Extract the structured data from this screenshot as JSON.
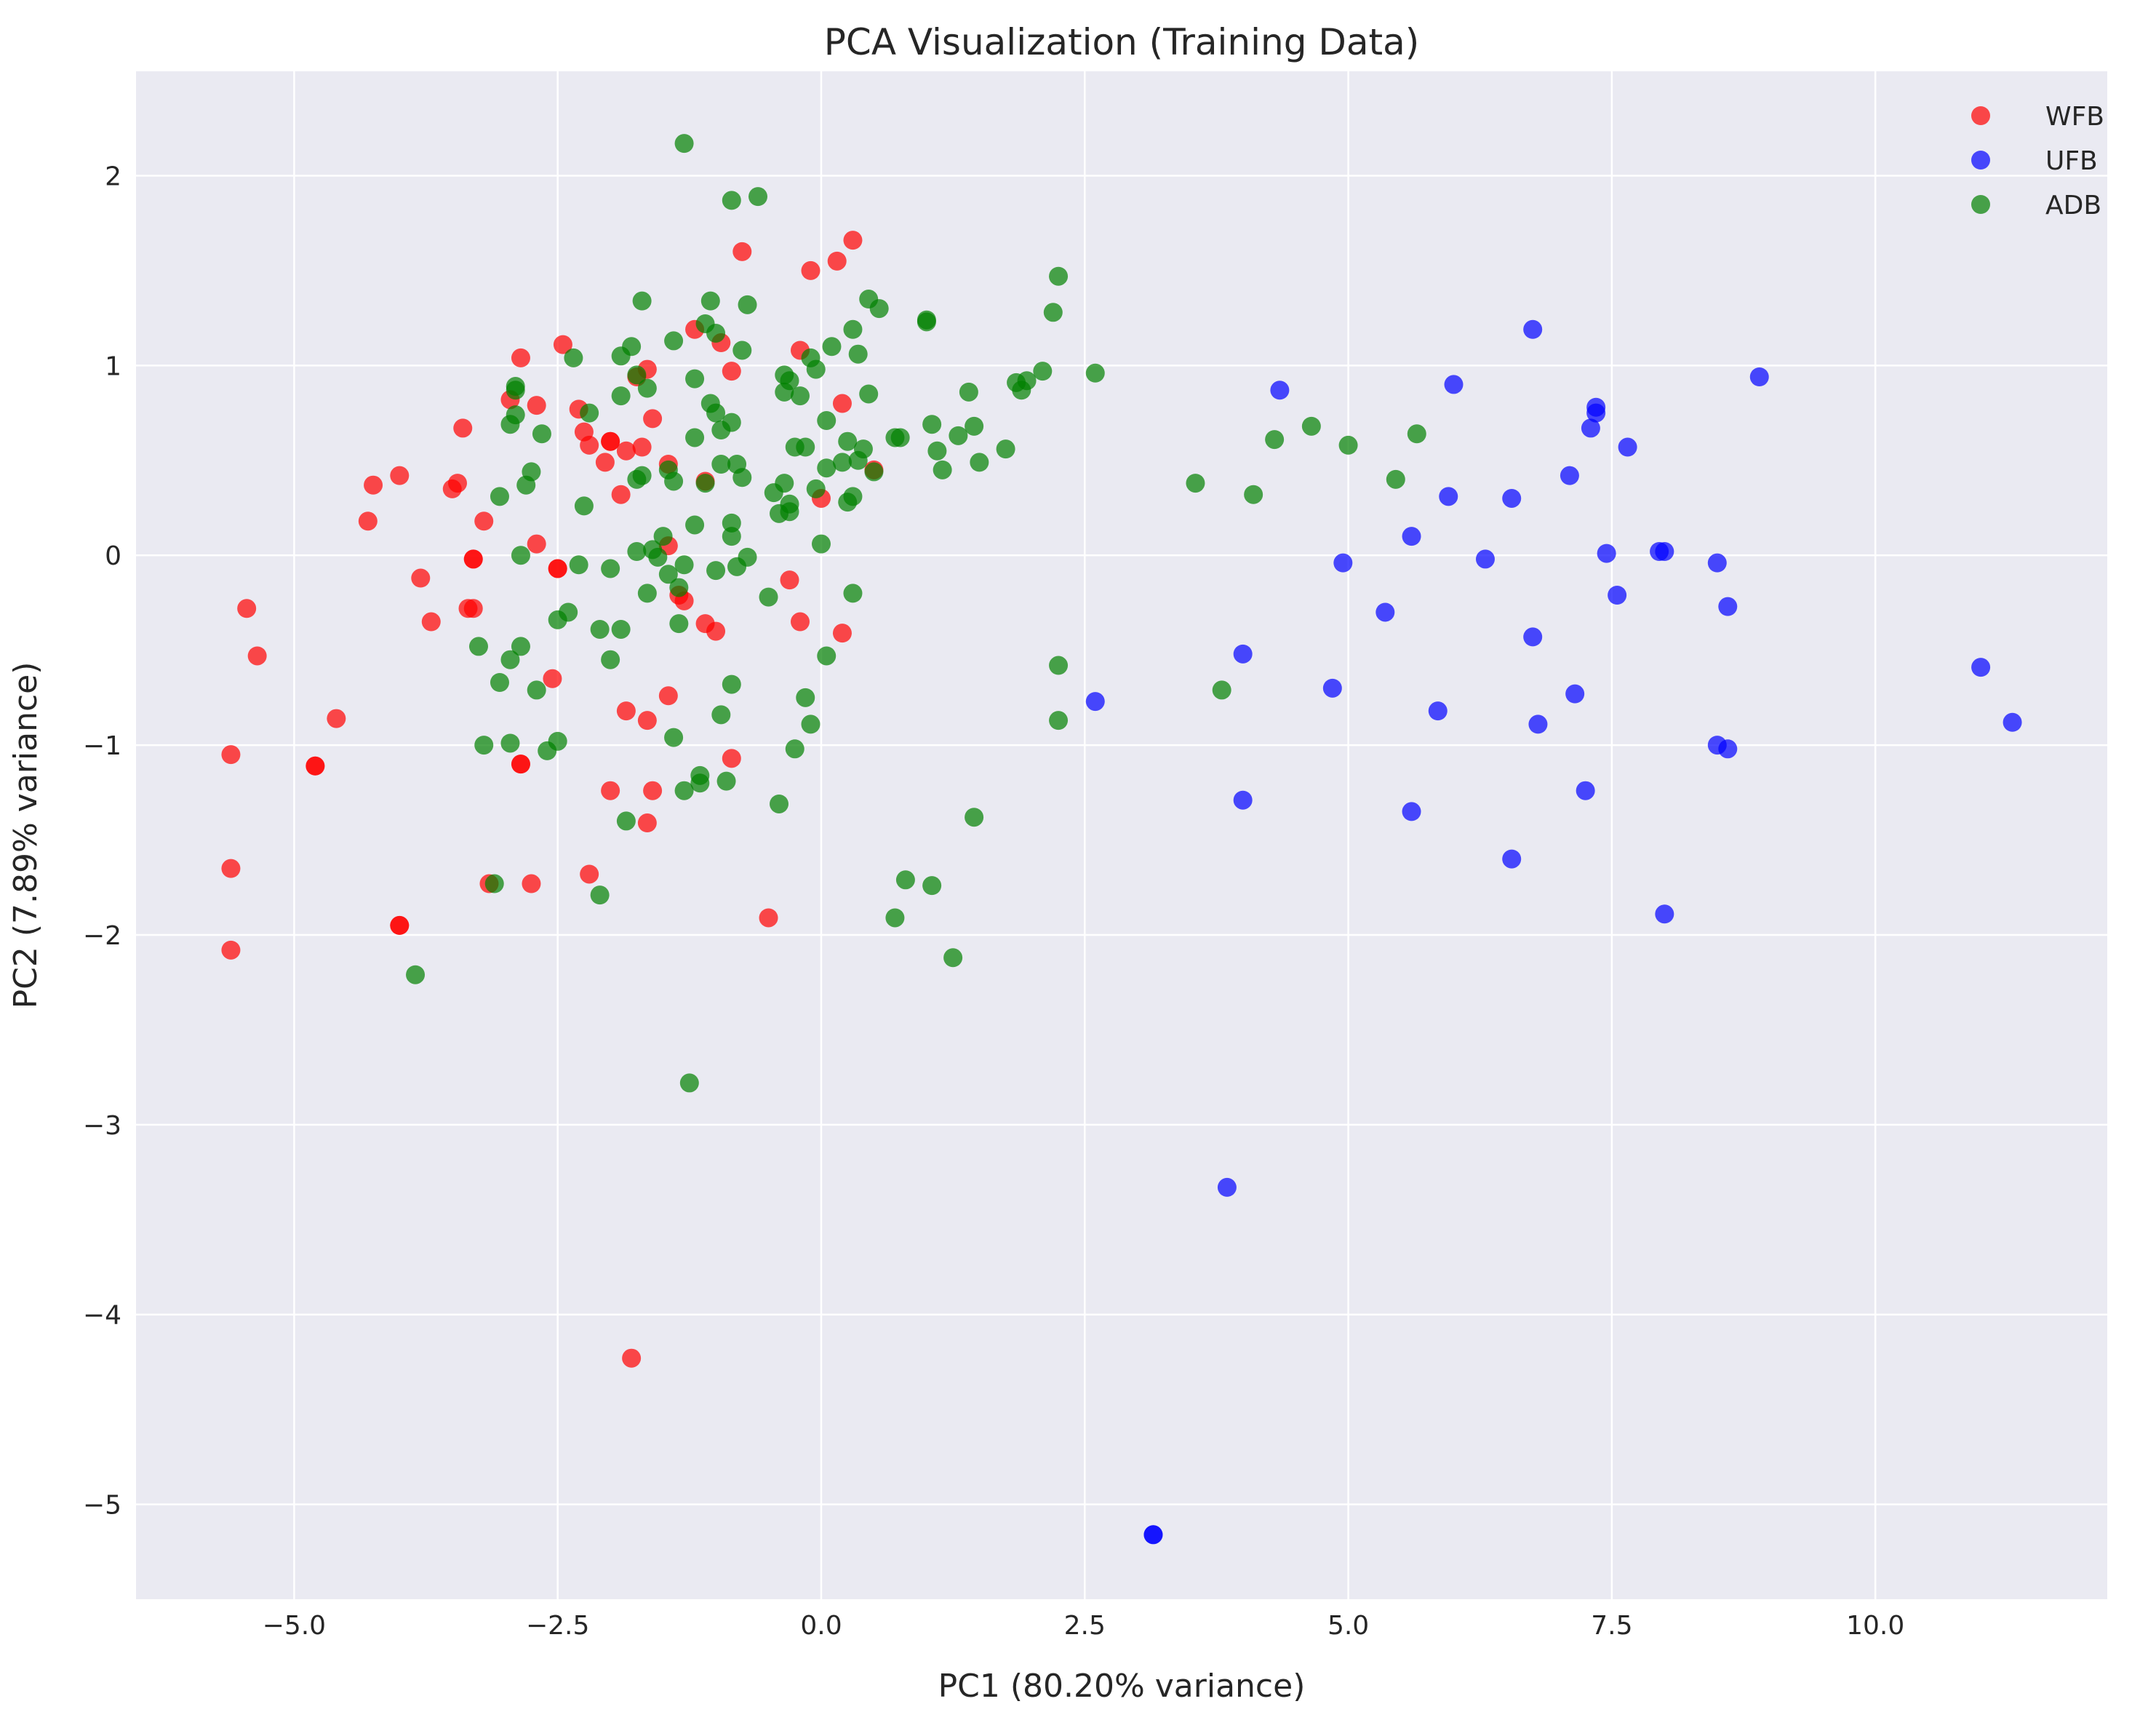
{
  "chart_data": {
    "type": "scatter",
    "title": "PCA Visualization (Training Data)",
    "xlabel": "PC1 (80.20% variance)",
    "ylabel": "PC2 (7.89% variance)",
    "xlim": [
      -6.5,
      12.2
    ],
    "ylim": [
      -5.5,
      2.55
    ],
    "xticks": [
      -5.0,
      -2.5,
      0.0,
      2.5,
      5.0,
      7.5,
      10.0
    ],
    "xtick_labels": [
      "−5.0",
      "−2.5",
      "0.0",
      "2.5",
      "5.0",
      "7.5",
      "10.0"
    ],
    "yticks": [
      -5,
      -4,
      -3,
      -2,
      -1,
      0,
      1,
      2
    ],
    "ytick_labels": [
      "−5",
      "−4",
      "−3",
      "−2",
      "−1",
      "0",
      "1",
      "2"
    ],
    "grid": true,
    "legend_position": "top-right",
    "colors": {
      "background": "#eaeaf2",
      "grid": "#ffffff"
    },
    "series": [
      {
        "name": "WFB",
        "color": "#ff0000",
        "points": [
          [
            -5.6,
            -1.05
          ],
          [
            -5.6,
            -1.65
          ],
          [
            -5.6,
            -2.08
          ],
          [
            -5.45,
            -0.28
          ],
          [
            -5.35,
            -0.53
          ],
          [
            -4.8,
            -1.11
          ],
          [
            -4.8,
            -1.11
          ],
          [
            -4.6,
            -0.86
          ],
          [
            -4.3,
            0.18
          ],
          [
            -4.25,
            0.37
          ],
          [
            -4.0,
            0.42
          ],
          [
            -4.0,
            -1.95
          ],
          [
            -4.0,
            -1.95
          ],
          [
            -3.8,
            -0.12
          ],
          [
            -3.7,
            -0.35
          ],
          [
            -3.5,
            0.35
          ],
          [
            -3.45,
            0.38
          ],
          [
            -3.4,
            0.67
          ],
          [
            -3.35,
            -0.28
          ],
          [
            -3.3,
            -0.02
          ],
          [
            -3.3,
            -0.02
          ],
          [
            -3.3,
            -0.28
          ],
          [
            -3.2,
            0.18
          ],
          [
            -3.15,
            -1.73
          ],
          [
            -2.95,
            0.82
          ],
          [
            -2.85,
            1.04
          ],
          [
            -2.85,
            -1.1
          ],
          [
            -2.85,
            -1.1
          ],
          [
            -2.75,
            -1.73
          ],
          [
            -2.7,
            0.79
          ],
          [
            -2.7,
            0.06
          ],
          [
            -2.55,
            -0.65
          ],
          [
            -2.5,
            -0.07
          ],
          [
            -2.5,
            -0.07
          ],
          [
            -2.45,
            1.11
          ],
          [
            -2.3,
            0.77
          ],
          [
            -2.25,
            0.65
          ],
          [
            -2.2,
            0.58
          ],
          [
            -2.2,
            -1.68
          ],
          [
            -2.05,
            0.49
          ],
          [
            -2.0,
            0.6
          ],
          [
            -2.0,
            0.6
          ],
          [
            -2.0,
            -1.24
          ],
          [
            -1.9,
            0.32
          ],
          [
            -1.85,
            0.55
          ],
          [
            -1.85,
            -0.82
          ],
          [
            -1.8,
            -4.23
          ],
          [
            -1.75,
            0.94
          ],
          [
            -1.7,
            0.57
          ],
          [
            -1.65,
            0.98
          ],
          [
            -1.65,
            -0.87
          ],
          [
            -1.65,
            -1.41
          ],
          [
            -1.6,
            0.72
          ],
          [
            -1.6,
            -1.24
          ],
          [
            -1.45,
            0.48
          ],
          [
            -1.45,
            0.05
          ],
          [
            -1.45,
            -0.74
          ],
          [
            -1.35,
            -0.21
          ],
          [
            -1.3,
            -0.24
          ],
          [
            -1.2,
            1.19
          ],
          [
            -1.1,
            0.39
          ],
          [
            -1.1,
            -0.36
          ],
          [
            -1.0,
            -0.4
          ],
          [
            -0.95,
            1.12
          ],
          [
            -0.85,
            0.97
          ],
          [
            -0.85,
            -1.07
          ],
          [
            -0.75,
            1.6
          ],
          [
            -0.5,
            -1.91
          ],
          [
            -0.3,
            -0.13
          ],
          [
            -0.2,
            1.08
          ],
          [
            -0.2,
            -0.35
          ],
          [
            -0.1,
            1.5
          ],
          [
            0.0,
            0.3
          ],
          [
            0.15,
            1.55
          ],
          [
            0.2,
            0.8
          ],
          [
            0.2,
            -0.41
          ],
          [
            0.3,
            1.66
          ],
          [
            0.5,
            0.45
          ]
        ]
      },
      {
        "name": "UFB",
        "color": "#0000ff",
        "points": [
          [
            2.6,
            -0.77
          ],
          [
            3.15,
            -5.16
          ],
          [
            3.15,
            -5.16
          ],
          [
            3.85,
            -3.33
          ],
          [
            4.0,
            -0.52
          ],
          [
            4.0,
            -1.29
          ],
          [
            4.35,
            0.87
          ],
          [
            4.85,
            -0.7
          ],
          [
            4.95,
            -0.04
          ],
          [
            5.35,
            -0.3
          ],
          [
            5.6,
            0.1
          ],
          [
            5.6,
            -1.35
          ],
          [
            5.85,
            -0.82
          ],
          [
            5.95,
            0.31
          ],
          [
            6.0,
            0.9
          ],
          [
            6.3,
            -0.02
          ],
          [
            6.55,
            0.3
          ],
          [
            6.55,
            -1.6
          ],
          [
            6.75,
            1.19
          ],
          [
            6.75,
            -0.43
          ],
          [
            6.8,
            -0.89
          ],
          [
            7.1,
            0.42
          ],
          [
            7.15,
            -0.73
          ],
          [
            7.25,
            -1.24
          ],
          [
            7.3,
            0.67
          ],
          [
            7.35,
            0.78
          ],
          [
            7.35,
            0.75
          ],
          [
            7.45,
            0.01
          ],
          [
            7.55,
            -0.21
          ],
          [
            7.65,
            0.57
          ],
          [
            7.95,
            0.02
          ],
          [
            8.0,
            0.02
          ],
          [
            8.0,
            -1.89
          ],
          [
            8.5,
            -0.04
          ],
          [
            8.5,
            -1.0
          ],
          [
            8.6,
            -1.02
          ],
          [
            8.6,
            -0.27
          ],
          [
            8.9,
            0.94
          ],
          [
            11.0,
            -0.59
          ],
          [
            11.3,
            -0.88
          ]
        ]
      },
      {
        "name": "ADB",
        "color": "#008000",
        "points": [
          [
            -3.85,
            -2.21
          ],
          [
            -3.25,
            -0.48
          ],
          [
            -3.2,
            -1.0
          ],
          [
            -3.1,
            -1.73
          ],
          [
            -3.05,
            0.31
          ],
          [
            -3.05,
            -0.67
          ],
          [
            -2.95,
            0.69
          ],
          [
            -2.95,
            -0.55
          ],
          [
            -2.95,
            -0.99
          ],
          [
            -2.9,
            0.87
          ],
          [
            -2.9,
            0.89
          ],
          [
            -2.9,
            0.74
          ],
          [
            -2.85,
            0.0
          ],
          [
            -2.85,
            -0.48
          ],
          [
            -2.8,
            0.37
          ],
          [
            -2.75,
            0.44
          ],
          [
            -2.7,
            -0.71
          ],
          [
            -2.65,
            0.64
          ],
          [
            -2.6,
            -1.03
          ],
          [
            -2.5,
            -0.98
          ],
          [
            -2.5,
            -0.34
          ],
          [
            -2.4,
            -0.3
          ],
          [
            -2.35,
            1.04
          ],
          [
            -2.3,
            -0.05
          ],
          [
            -2.25,
            0.26
          ],
          [
            -2.2,
            0.75
          ],
          [
            -2.1,
            -0.39
          ],
          [
            -2.1,
            -1.79
          ],
          [
            -2.0,
            -0.07
          ],
          [
            -2.0,
            -0.55
          ],
          [
            -1.9,
            1.05
          ],
          [
            -1.9,
            0.84
          ],
          [
            -1.9,
            -0.39
          ],
          [
            -1.85,
            -1.4
          ],
          [
            -1.8,
            1.1
          ],
          [
            -1.75,
            0.95
          ],
          [
            -1.75,
            0.4
          ],
          [
            -1.75,
            0.02
          ],
          [
            -1.7,
            1.34
          ],
          [
            -1.7,
            0.42
          ],
          [
            -1.65,
            0.88
          ],
          [
            -1.65,
            -0.2
          ],
          [
            -1.6,
            0.03
          ],
          [
            -1.55,
            -0.01
          ],
          [
            -1.5,
            0.1
          ],
          [
            -1.45,
            0.45
          ],
          [
            -1.45,
            -0.1
          ],
          [
            -1.4,
            1.13
          ],
          [
            -1.4,
            0.39
          ],
          [
            -1.4,
            -0.96
          ],
          [
            -1.35,
            -0.17
          ],
          [
            -1.35,
            -0.36
          ],
          [
            -1.3,
            2.17
          ],
          [
            -1.3,
            -0.05
          ],
          [
            -1.3,
            -1.24
          ],
          [
            -1.25,
            -2.78
          ],
          [
            -1.2,
            0.93
          ],
          [
            -1.2,
            0.62
          ],
          [
            -1.2,
            0.16
          ],
          [
            -1.15,
            -1.2
          ],
          [
            -1.15,
            -1.16
          ],
          [
            -1.1,
            1.22
          ],
          [
            -1.1,
            0.38
          ],
          [
            -1.05,
            1.34
          ],
          [
            -1.05,
            0.8
          ],
          [
            -1.0,
            1.17
          ],
          [
            -1.0,
            0.75
          ],
          [
            -1.0,
            -0.08
          ],
          [
            -0.95,
            0.66
          ],
          [
            -0.95,
            0.48
          ],
          [
            -0.95,
            -0.84
          ],
          [
            -0.9,
            -1.19
          ],
          [
            -0.85,
            1.87
          ],
          [
            -0.85,
            0.7
          ],
          [
            -0.85,
            0.17
          ],
          [
            -0.85,
            0.1
          ],
          [
            -0.85,
            -0.68
          ],
          [
            -0.8,
            0.48
          ],
          [
            -0.8,
            -0.06
          ],
          [
            -0.75,
            1.08
          ],
          [
            -0.75,
            0.41
          ],
          [
            -0.7,
            1.32
          ],
          [
            -0.7,
            -0.01
          ],
          [
            -0.6,
            1.89
          ],
          [
            -0.5,
            -0.22
          ],
          [
            -0.45,
            0.33
          ],
          [
            -0.4,
            0.22
          ],
          [
            -0.4,
            -1.31
          ],
          [
            -0.35,
            0.95
          ],
          [
            -0.35,
            0.86
          ],
          [
            -0.35,
            0.38
          ],
          [
            -0.3,
            0.92
          ],
          [
            -0.3,
            0.27
          ],
          [
            -0.3,
            0.23
          ],
          [
            -0.25,
            0.57
          ],
          [
            -0.25,
            -1.02
          ],
          [
            -0.2,
            0.84
          ],
          [
            -0.15,
            0.57
          ],
          [
            -0.15,
            -0.75
          ],
          [
            -0.1,
            1.04
          ],
          [
            -0.1,
            -0.89
          ],
          [
            -0.05,
            0.98
          ],
          [
            -0.05,
            0.35
          ],
          [
            0.0,
            0.06
          ],
          [
            0.05,
            0.71
          ],
          [
            0.05,
            0.46
          ],
          [
            0.05,
            -0.53
          ],
          [
            0.1,
            1.1
          ],
          [
            0.2,
            0.49
          ],
          [
            0.25,
            0.6
          ],
          [
            0.25,
            0.28
          ],
          [
            0.3,
            1.19
          ],
          [
            0.3,
            0.31
          ],
          [
            0.3,
            -0.2
          ],
          [
            0.35,
            1.06
          ],
          [
            0.35,
            0.5
          ],
          [
            0.4,
            0.56
          ],
          [
            0.45,
            0.85
          ],
          [
            0.45,
            1.35
          ],
          [
            0.5,
            0.44
          ],
          [
            0.55,
            1.3
          ],
          [
            0.7,
            0.62
          ],
          [
            0.7,
            -1.91
          ],
          [
            0.75,
            0.62
          ],
          [
            0.8,
            -1.71
          ],
          [
            1.0,
            1.23
          ],
          [
            1.0,
            1.24
          ],
          [
            1.05,
            0.69
          ],
          [
            1.05,
            -1.74
          ],
          [
            1.1,
            0.55
          ],
          [
            1.15,
            0.45
          ],
          [
            1.25,
            -2.12
          ],
          [
            1.3,
            0.63
          ],
          [
            1.4,
            0.86
          ],
          [
            1.45,
            0.68
          ],
          [
            1.45,
            -1.38
          ],
          [
            1.5,
            0.49
          ],
          [
            1.75,
            0.56
          ],
          [
            1.85,
            0.91
          ],
          [
            1.9,
            0.87
          ],
          [
            1.95,
            0.92
          ],
          [
            2.1,
            0.97
          ],
          [
            2.2,
            1.28
          ],
          [
            2.25,
            -0.58
          ],
          [
            2.25,
            -0.87
          ],
          [
            2.25,
            1.47
          ],
          [
            2.6,
            0.96
          ],
          [
            3.55,
            0.38
          ],
          [
            3.8,
            -0.71
          ],
          [
            4.1,
            0.32
          ],
          [
            4.3,
            0.61
          ],
          [
            4.65,
            0.68
          ],
          [
            5.0,
            0.58
          ],
          [
            5.45,
            0.4
          ],
          [
            5.65,
            0.64
          ]
        ]
      }
    ]
  }
}
